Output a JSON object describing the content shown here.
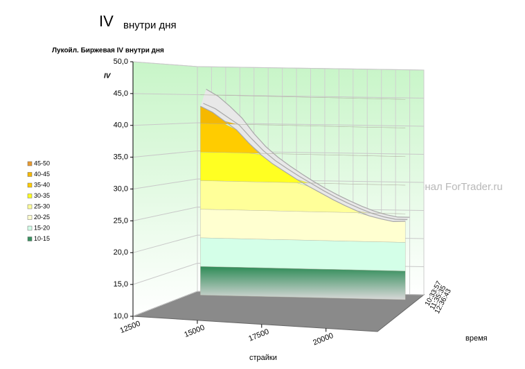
{
  "chart_data": {
    "type": "surface3d",
    "page_title": "IV",
    "page_subtitle": "внутри дня",
    "title": "Лукойл. Биржевая IV внутри дня",
    "y_label": "IV",
    "x_label": "страйки",
    "z_label": "время",
    "watermark": "Журнал ForTrader.ru",
    "xlim": [
      12500,
      22000
    ],
    "xticks": [
      12500,
      15000,
      17500,
      20000
    ],
    "ylim": [
      10,
      50
    ],
    "yticks": [
      {
        "value": 10,
        "label": "10,0"
      },
      {
        "value": 15,
        "label": "15,0"
      },
      {
        "value": 20,
        "label": "20,0"
      },
      {
        "value": 25,
        "label": "25,0"
      },
      {
        "value": 30,
        "label": "30,0"
      },
      {
        "value": 35,
        "label": "35,0"
      },
      {
        "value": 40,
        "label": "40,0"
      },
      {
        "value": 45,
        "label": "45,0"
      },
      {
        "value": 50,
        "label": "50,0"
      }
    ],
    "x": [
      13000,
      13500,
      14000,
      14500,
      15000,
      15500,
      16000,
      16500,
      17000,
      17500,
      18000,
      18500,
      19000,
      19500,
      20000,
      20500,
      21000,
      21500
    ],
    "series": [
      {
        "name": "10:33:57",
        "color": "#a8a8a8",
        "values": [
          43.0,
          42.0,
          40.5,
          39.0,
          36.8,
          34.8,
          33.2,
          31.9,
          30.6,
          29.4,
          28.3,
          27.2,
          26.2,
          25.3,
          24.5,
          24.0,
          23.6,
          23.7
        ]
      },
      {
        "name": "11:35:35",
        "color": "#a8a8a8",
        "values": [
          43.5,
          42.6,
          41.2,
          39.8,
          37.5,
          35.4,
          33.7,
          32.3,
          31.0,
          29.8,
          28.6,
          27.5,
          26.5,
          25.6,
          24.8,
          24.2,
          23.8,
          23.8
        ]
      },
      {
        "name": "12:36:43",
        "color": "#a8a8a8",
        "values": [
          46.0,
          44.8,
          43.0,
          41.0,
          38.3,
          36.0,
          34.2,
          32.7,
          31.3,
          30.0,
          28.8,
          27.7,
          26.7,
          25.8,
          25.0,
          24.4,
          24.0,
          24.0
        ]
      }
    ],
    "legend": [
      {
        "name": "45-50",
        "color": "#e89a30"
      },
      {
        "name": "40-45",
        "color": "#f5b800"
      },
      {
        "name": "35-40",
        "color": "#ffcc00"
      },
      {
        "name": "30-35",
        "color": "#ffff22"
      },
      {
        "name": "25-30",
        "color": "#ffff99"
      },
      {
        "name": "20-25",
        "color": "#ffffd0"
      },
      {
        "name": "15-20",
        "color": "#d4ffe8"
      },
      {
        "name": "10-15",
        "color": "#3a9060"
      }
    ]
  }
}
